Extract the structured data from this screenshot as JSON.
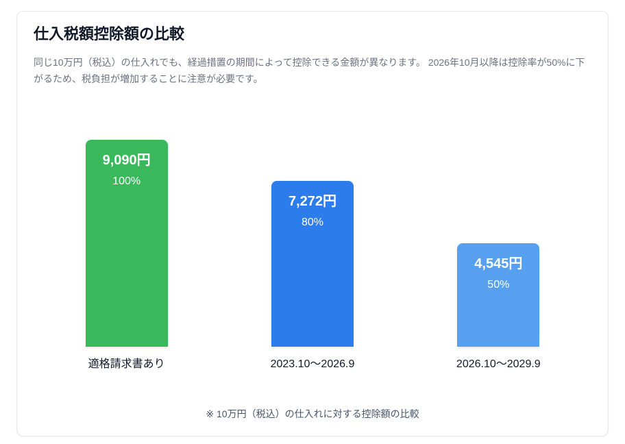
{
  "card": {
    "title": "仕入税額控除額の比較",
    "description": "同じ10万円（税込）の仕入れでも、経過措置の期間によって控除できる金額が異なります。 2026年10月以降は控除率が50%に下がるため、税負担が増加することに注意が必要です。",
    "footnote": "※ 10万円（税込）の仕入れに対する控除額の比較"
  },
  "chart_data": {
    "type": "bar",
    "title": "仕入税額控除額の比較",
    "categories": [
      "適格請求書あり",
      "2023.10〜2026.9",
      "2026.10〜2029.9"
    ],
    "values": [
      9090,
      7272,
      4545
    ],
    "value_labels": [
      "9,090円",
      "7,272円",
      "4,545円"
    ],
    "percentages": [
      100,
      80,
      50
    ],
    "percent_labels": [
      "100%",
      "80%",
      "50%"
    ],
    "bar_colors": [
      "#3ab95c",
      "#2d7ceb",
      "#57a0f0"
    ],
    "unit": "円",
    "ylim": [
      0,
      9090
    ],
    "grid": false,
    "legend": false,
    "note": "※ 10万円（税込）の仕入れに対する控除額の比較"
  }
}
